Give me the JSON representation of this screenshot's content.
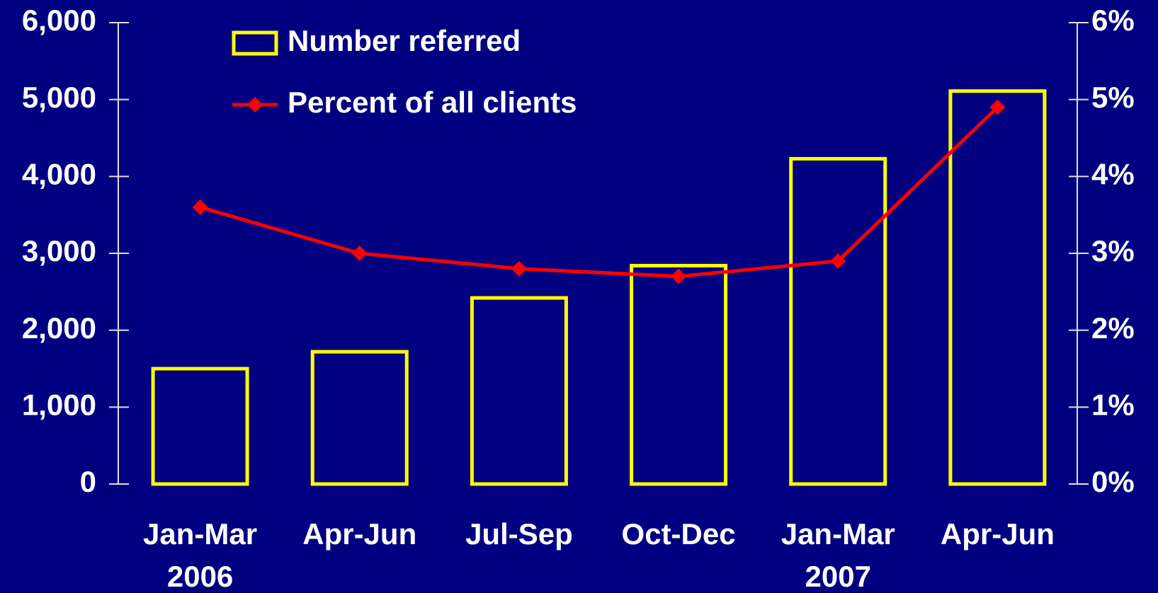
{
  "chart_data": {
    "type": "bar_line",
    "categories": [
      "Jan-Mar",
      "Apr-Jun",
      "Jul-Sep",
      "Oct-Dec",
      "Jan-Mar",
      "Apr-Jun"
    ],
    "year_labels": [
      "2006",
      null,
      null,
      null,
      "2007",
      null
    ],
    "series": [
      {
        "name": "Number referred",
        "type": "bar",
        "color": "#ffff00",
        "values": [
          1500,
          1720,
          2420,
          2840,
          4230,
          5110
        ]
      },
      {
        "name": "Percent of all clients",
        "type": "line",
        "color": "#ff0000",
        "axis": "y2",
        "values": [
          3.6,
          3.0,
          2.8,
          2.7,
          2.9,
          4.9
        ]
      }
    ],
    "ylim": [
      0,
      6000
    ],
    "yticks": [
      0,
      {
        "value": 1000,
        "label": "1,000"
      },
      {
        "value": 2000,
        "label": "2,000"
      },
      {
        "value": 3000,
        "label": "3,000"
      },
      {
        "value": 4000,
        "label": "4,000"
      },
      {
        "value": 5000,
        "label": "5,000"
      },
      {
        "value": 6000,
        "label": "6,000"
      }
    ],
    "y2lim": [
      0,
      6
    ],
    "y2ticks": [
      {
        "value": 0,
        "label": "0%"
      },
      {
        "value": 1,
        "label": "1%"
      },
      {
        "value": 2,
        "label": "2%"
      },
      {
        "value": 3,
        "label": "3%"
      },
      {
        "value": 4,
        "label": "4%"
      },
      {
        "value": 5,
        "label": "5%"
      },
      {
        "value": 6,
        "label": "6%"
      }
    ],
    "legend": "top-left"
  }
}
